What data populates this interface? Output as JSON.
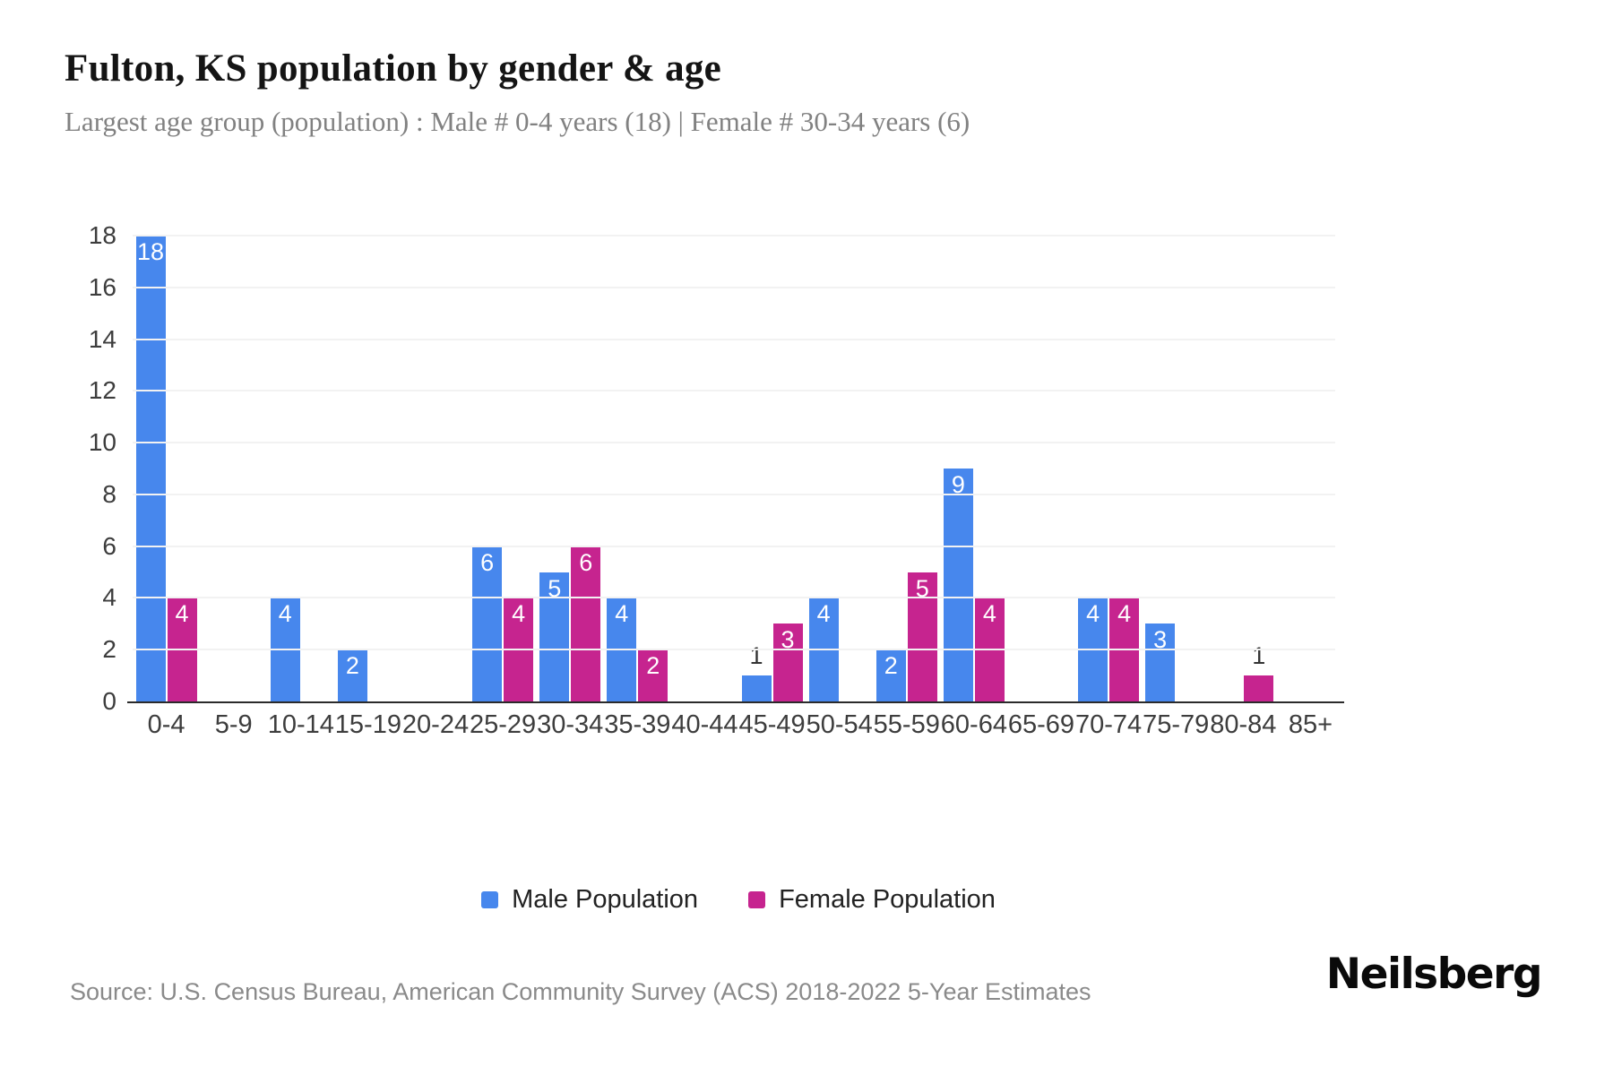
{
  "header": {
    "title": "Fulton, KS population by gender & age",
    "subtitle": "Largest age group (population) : Male # 0-4 years (18) | Female # 30-34 years (6)"
  },
  "chart_data": {
    "type": "bar",
    "title": "Fulton, KS population by gender & age",
    "categories": [
      "0-4",
      "5-9",
      "10-14",
      "15-19",
      "20-24",
      "25-29",
      "30-34",
      "35-39",
      "40-44",
      "45-49",
      "50-54",
      "55-59",
      "60-64",
      "65-69",
      "70-74",
      "75-79",
      "80-84",
      "85+"
    ],
    "series": [
      {
        "name": "Male Population",
        "color": "#4787ED",
        "values": [
          18,
          0,
          4,
          2,
          0,
          6,
          5,
          4,
          0,
          1,
          4,
          2,
          9,
          0,
          4,
          3,
          0,
          0
        ]
      },
      {
        "name": "Female Population",
        "color": "#C6248F",
        "values": [
          4,
          0,
          0,
          0,
          0,
          4,
          6,
          2,
          0,
          3,
          0,
          5,
          4,
          0,
          4,
          0,
          1,
          0
        ]
      }
    ],
    "ylim": [
      0,
      18
    ],
    "yticks": [
      0,
      2,
      4,
      6,
      8,
      10,
      12,
      14,
      16,
      18
    ],
    "grid": "horizontal",
    "legend_position": "bottom",
    "colors": {
      "grid": "#f2f2f2",
      "axis_line": "#2b2b2b",
      "tick_text": "#3d3d3d",
      "bar_label_inside": "#ffffff",
      "bar_label_outside": "#333333"
    }
  },
  "footer": {
    "source": "Source: U.S. Census Bureau, American Community Survey (ACS) 2018-2022 5-Year Estimates",
    "brand": "Neilsberg"
  }
}
